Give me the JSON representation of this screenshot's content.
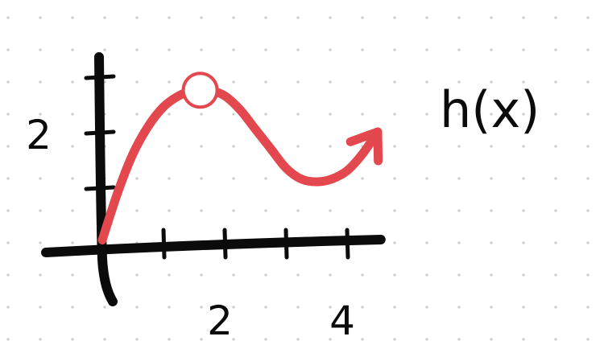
{
  "colors": {
    "background": "#ffffff",
    "grid_dot": "#c9c9c9",
    "axis": "#0b0b0b",
    "curve": "#e2484d",
    "ink": "#0b0b0b"
  },
  "chart_data": {
    "type": "line",
    "title": "",
    "xlabel": "",
    "ylabel": "",
    "function_label": "h(x)",
    "x_tick_values": [
      1,
      2,
      3,
      4
    ],
    "x_tick_labels": [
      {
        "value": 2,
        "label": "2"
      },
      {
        "value": 4,
        "label": "4"
      }
    ],
    "y_tick_values": [
      1,
      2,
      3
    ],
    "y_tick_labels": [
      {
        "value": 2,
        "label": "2"
      }
    ],
    "xlim": [
      0,
      4.5
    ],
    "ylim": [
      0,
      3.5
    ],
    "grid": "dots",
    "series": [
      {
        "x": [
          0,
          0.25,
          0.5,
          0.75,
          1.0,
          1.25,
          1.5,
          1.75,
          2.0,
          2.25,
          2.5,
          2.75,
          3.0,
          3.25,
          3.5,
          3.75,
          4.0,
          4.25,
          4.5
        ],
        "y": [
          0.05,
          0.9,
          1.6,
          2.1,
          2.45,
          2.65,
          2.75,
          2.75,
          2.65,
          2.4,
          2.05,
          1.7,
          1.35,
          1.15,
          1.1,
          1.15,
          1.3,
          1.6,
          2.0
        ],
        "arrow_end": true
      }
    ],
    "open_circle": {
      "x": 1.6,
      "y": 2.75
    }
  }
}
